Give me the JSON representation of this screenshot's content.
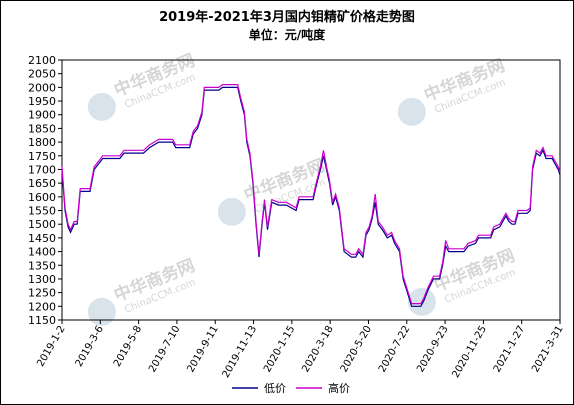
{
  "chart_data": {
    "type": "line",
    "title": "2019年-2021年3月国内钼精矿价格走势图",
    "subtitle": "单位：元/吨度",
    "xlabel": "",
    "ylabel": "",
    "ylim": [
      1150,
      2100
    ],
    "yticks": [
      2100,
      2050,
      2000,
      1950,
      1900,
      1850,
      1800,
      1750,
      1700,
      1650,
      1600,
      1550,
      1500,
      1450,
      1400,
      1350,
      1300,
      1250,
      1200,
      1150
    ],
    "xlim": [
      "2019-01-02",
      "2021-03-31"
    ],
    "xticks": [
      "2019-1-2",
      "2019-3-6",
      "2019-5-8",
      "2019-7-10",
      "2019-9-11",
      "2019-11-13",
      "2020-1-15",
      "2020-3-18",
      "2020-5-20",
      "2020-7-22",
      "2020-9-23",
      "2020-11-25",
      "2021-1-27",
      "2021-3-31"
    ],
    "grid": false,
    "legend_position": "bottom",
    "series": [
      {
        "name": "低价",
        "color": "#00008b",
        "points": [
          [
            "2019-01-02",
            1700
          ],
          [
            "2019-01-07",
            1550
          ],
          [
            "2019-01-12",
            1490
          ],
          [
            "2019-01-16",
            1470
          ],
          [
            "2019-01-22",
            1500
          ],
          [
            "2019-01-27",
            1500
          ],
          [
            "2019-02-01",
            1620
          ],
          [
            "2019-02-17",
            1620
          ],
          [
            "2019-02-24",
            1700
          ],
          [
            "2019-03-10",
            1740
          ],
          [
            "2019-04-07",
            1740
          ],
          [
            "2019-04-14",
            1760
          ],
          [
            "2019-05-16",
            1760
          ],
          [
            "2019-05-26",
            1780
          ],
          [
            "2019-06-10",
            1800
          ],
          [
            "2019-07-03",
            1800
          ],
          [
            "2019-07-08",
            1780
          ],
          [
            "2019-07-31",
            1780
          ],
          [
            "2019-08-06",
            1830
          ],
          [
            "2019-08-13",
            1850
          ],
          [
            "2019-08-20",
            1900
          ],
          [
            "2019-08-24",
            1990
          ],
          [
            "2019-09-17",
            1990
          ],
          [
            "2019-09-23",
            2000
          ],
          [
            "2019-10-18",
            2000
          ],
          [
            "2019-10-23",
            1950
          ],
          [
            "2019-10-29",
            1900
          ],
          [
            "2019-11-02",
            1800
          ],
          [
            "2019-11-07",
            1750
          ],
          [
            "2019-11-12",
            1650
          ],
          [
            "2019-11-17",
            1500
          ],
          [
            "2019-11-22",
            1380
          ],
          [
            "2019-11-27",
            1500
          ],
          [
            "2019-12-01",
            1580
          ],
          [
            "2019-12-06",
            1480
          ],
          [
            "2019-12-13",
            1580
          ],
          [
            "2019-12-24",
            1570
          ],
          [
            "2020-01-06",
            1570
          ],
          [
            "2020-01-22",
            1550
          ],
          [
            "2020-01-27",
            1590
          ],
          [
            "2020-02-19",
            1590
          ],
          [
            "2020-02-24",
            1640
          ],
          [
            "2020-03-02",
            1700
          ],
          [
            "2020-03-07",
            1750
          ],
          [
            "2020-03-12",
            1700
          ],
          [
            "2020-03-17",
            1650
          ],
          [
            "2020-03-22",
            1570
          ],
          [
            "2020-03-27",
            1600
          ],
          [
            "2020-04-02",
            1550
          ],
          [
            "2020-04-10",
            1400
          ],
          [
            "2020-04-22",
            1380
          ],
          [
            "2020-04-29",
            1380
          ],
          [
            "2020-05-04",
            1400
          ],
          [
            "2020-05-11",
            1380
          ],
          [
            "2020-05-16",
            1460
          ],
          [
            "2020-05-21",
            1480
          ],
          [
            "2020-05-26",
            1520
          ],
          [
            "2020-05-31",
            1580
          ],
          [
            "2020-06-05",
            1500
          ],
          [
            "2020-06-12",
            1480
          ],
          [
            "2020-06-20",
            1450
          ],
          [
            "2020-06-27",
            1460
          ],
          [
            "2020-07-02",
            1430
          ],
          [
            "2020-07-10",
            1400
          ],
          [
            "2020-07-16",
            1300
          ],
          [
            "2020-07-23",
            1250
          ],
          [
            "2020-07-30",
            1200
          ],
          [
            "2020-08-14",
            1200
          ],
          [
            "2020-08-19",
            1220
          ],
          [
            "2020-08-26",
            1260
          ],
          [
            "2020-09-04",
            1300
          ],
          [
            "2020-09-14",
            1300
          ],
          [
            "2020-09-19",
            1350
          ],
          [
            "2020-09-24",
            1420
          ],
          [
            "2020-09-29",
            1400
          ],
          [
            "2020-10-24",
            1400
          ],
          [
            "2020-10-31",
            1420
          ],
          [
            "2020-11-12",
            1430
          ],
          [
            "2020-11-17",
            1450
          ],
          [
            "2020-12-07",
            1450
          ],
          [
            "2020-12-12",
            1480
          ],
          [
            "2020-12-22",
            1490
          ],
          [
            "2020-12-27",
            1510
          ],
          [
            "2021-01-01",
            1530
          ],
          [
            "2021-01-06",
            1510
          ],
          [
            "2021-01-11",
            1500
          ],
          [
            "2021-01-16",
            1500
          ],
          [
            "2021-01-21",
            1540
          ],
          [
            "2021-02-05",
            1540
          ],
          [
            "2021-02-10",
            1550
          ],
          [
            "2021-02-14",
            1700
          ],
          [
            "2021-02-20",
            1760
          ],
          [
            "2021-02-26",
            1750
          ],
          [
            "2021-03-03",
            1770
          ],
          [
            "2021-03-08",
            1740
          ],
          [
            "2021-03-18",
            1740
          ],
          [
            "2021-03-23",
            1720
          ],
          [
            "2021-03-28",
            1700
          ],
          [
            "2021-03-31",
            1680
          ]
        ]
      },
      {
        "name": "高价",
        "color": "#cc00cc",
        "points": [
          [
            "2019-01-02",
            1710
          ],
          [
            "2019-01-07",
            1560
          ],
          [
            "2019-01-12",
            1500
          ],
          [
            "2019-01-16",
            1480
          ],
          [
            "2019-01-22",
            1510
          ],
          [
            "2019-01-27",
            1510
          ],
          [
            "2019-02-01",
            1630
          ],
          [
            "2019-02-17",
            1630
          ],
          [
            "2019-02-24",
            1710
          ],
          [
            "2019-03-10",
            1750
          ],
          [
            "2019-04-07",
            1750
          ],
          [
            "2019-04-14",
            1770
          ],
          [
            "2019-05-16",
            1770
          ],
          [
            "2019-05-26",
            1790
          ],
          [
            "2019-06-10",
            1810
          ],
          [
            "2019-07-03",
            1810
          ],
          [
            "2019-07-08",
            1790
          ],
          [
            "2019-07-31",
            1790
          ],
          [
            "2019-08-06",
            1840
          ],
          [
            "2019-08-13",
            1860
          ],
          [
            "2019-08-20",
            1910
          ],
          [
            "2019-08-24",
            2000
          ],
          [
            "2019-09-17",
            2000
          ],
          [
            "2019-09-23",
            2010
          ],
          [
            "2019-10-18",
            2010
          ],
          [
            "2019-10-23",
            1960
          ],
          [
            "2019-10-29",
            1910
          ],
          [
            "2019-11-02",
            1810
          ],
          [
            "2019-11-07",
            1760
          ],
          [
            "2019-11-12",
            1660
          ],
          [
            "2019-11-17",
            1510
          ],
          [
            "2019-11-22",
            1390
          ],
          [
            "2019-11-27",
            1510
          ],
          [
            "2019-12-01",
            1590
          ],
          [
            "2019-12-06",
            1490
          ],
          [
            "2019-12-13",
            1590
          ],
          [
            "2019-12-24",
            1580
          ],
          [
            "2020-01-06",
            1580
          ],
          [
            "2020-01-22",
            1560
          ],
          [
            "2020-01-27",
            1600
          ],
          [
            "2020-02-19",
            1600
          ],
          [
            "2020-02-24",
            1650
          ],
          [
            "2020-03-02",
            1710
          ],
          [
            "2020-03-07",
            1770
          ],
          [
            "2020-03-12",
            1710
          ],
          [
            "2020-03-17",
            1660
          ],
          [
            "2020-03-22",
            1580
          ],
          [
            "2020-03-27",
            1610
          ],
          [
            "2020-04-02",
            1560
          ],
          [
            "2020-04-10",
            1410
          ],
          [
            "2020-04-22",
            1390
          ],
          [
            "2020-04-29",
            1390
          ],
          [
            "2020-05-04",
            1410
          ],
          [
            "2020-05-11",
            1390
          ],
          [
            "2020-05-16",
            1470
          ],
          [
            "2020-05-21",
            1490
          ],
          [
            "2020-05-26",
            1530
          ],
          [
            "2020-05-31",
            1610
          ],
          [
            "2020-06-05",
            1510
          ],
          [
            "2020-06-12",
            1490
          ],
          [
            "2020-06-20",
            1460
          ],
          [
            "2020-06-27",
            1470
          ],
          [
            "2020-07-02",
            1440
          ],
          [
            "2020-07-10",
            1410
          ],
          [
            "2020-07-16",
            1310
          ],
          [
            "2020-07-23",
            1260
          ],
          [
            "2020-07-30",
            1210
          ],
          [
            "2020-08-14",
            1210
          ],
          [
            "2020-08-19",
            1230
          ],
          [
            "2020-08-26",
            1270
          ],
          [
            "2020-09-04",
            1310
          ],
          [
            "2020-09-14",
            1310
          ],
          [
            "2020-09-19",
            1360
          ],
          [
            "2020-09-24",
            1440
          ],
          [
            "2020-09-29",
            1410
          ],
          [
            "2020-10-24",
            1410
          ],
          [
            "2020-10-31",
            1430
          ],
          [
            "2020-11-12",
            1440
          ],
          [
            "2020-11-17",
            1460
          ],
          [
            "2020-12-07",
            1460
          ],
          [
            "2020-12-12",
            1490
          ],
          [
            "2020-12-22",
            1500
          ],
          [
            "2020-12-27",
            1520
          ],
          [
            "2021-01-01",
            1540
          ],
          [
            "2021-01-06",
            1520
          ],
          [
            "2021-01-11",
            1510
          ],
          [
            "2021-01-16",
            1510
          ],
          [
            "2021-01-21",
            1550
          ],
          [
            "2021-02-05",
            1550
          ],
          [
            "2021-02-10",
            1560
          ],
          [
            "2021-02-14",
            1710
          ],
          [
            "2021-02-20",
            1770
          ],
          [
            "2021-02-26",
            1760
          ],
          [
            "2021-03-03",
            1780
          ],
          [
            "2021-03-08",
            1750
          ],
          [
            "2021-03-18",
            1750
          ],
          [
            "2021-03-23",
            1730
          ],
          [
            "2021-03-28",
            1710
          ],
          [
            "2021-03-31",
            1690
          ]
        ]
      }
    ]
  },
  "watermark": {
    "text": "中华商务网",
    "subtext": "ChinaCCM.com",
    "logo_icon": "globe-logo-icon"
  }
}
